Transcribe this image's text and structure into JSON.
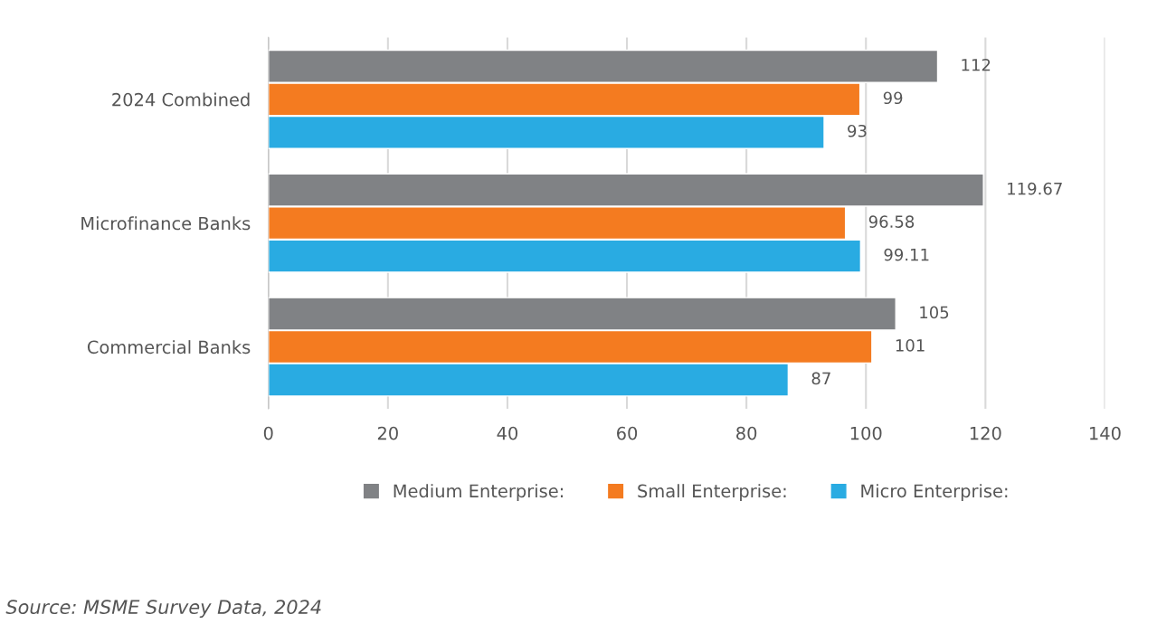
{
  "chart_data": {
    "type": "bar",
    "orientation": "horizontal",
    "categories": [
      "2024 Combined",
      "Microfinance Banks",
      "Commercial Banks"
    ],
    "series": [
      {
        "name": "Medium Enterprise:",
        "color": "#808285",
        "values": [
          112,
          119.67,
          105
        ]
      },
      {
        "name": "Small Enterprise:",
        "color": "#f47b20",
        "values": [
          99,
          96.58,
          101
        ]
      },
      {
        "name": "Micro Enterprise:",
        "color": "#29abe2",
        "values": [
          93,
          99.11,
          87
        ]
      }
    ],
    "xlim": [
      0,
      140
    ],
    "xticks": [
      0,
      20,
      40,
      60,
      80,
      100,
      120,
      140
    ],
    "grid": "x",
    "legend": "bottom",
    "data_labels": true,
    "annotations": [
      "Source: MSME Survey Data, 2024"
    ]
  }
}
